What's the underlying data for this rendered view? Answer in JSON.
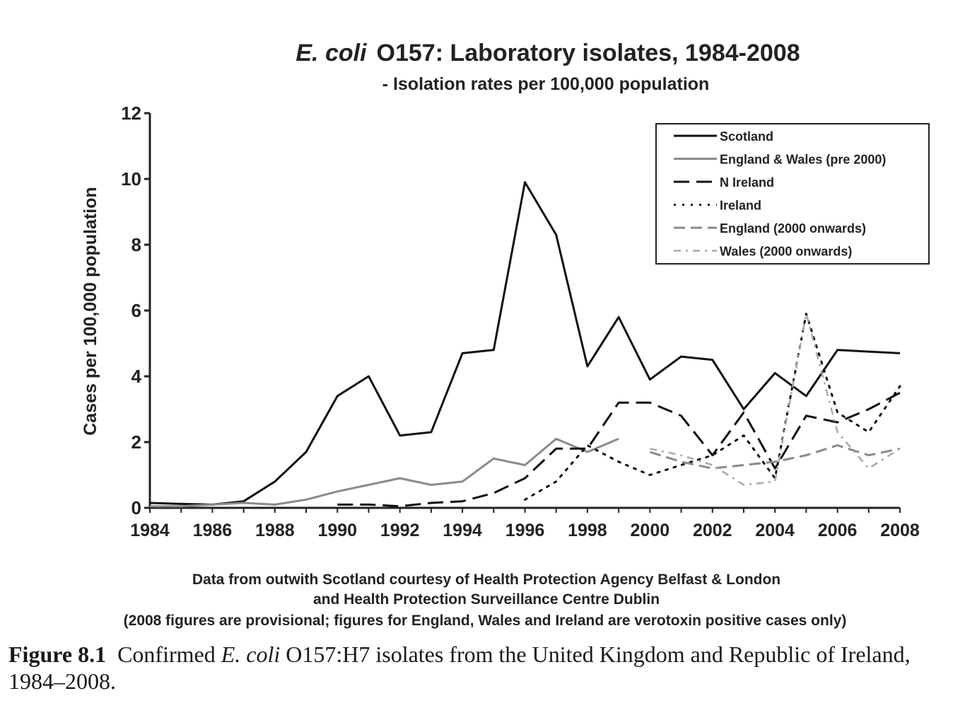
{
  "chart_data": {
    "type": "line",
    "title_italic": "E. coli",
    "title_rest": "O157: Laboratory isolates, 1984-2008",
    "subtitle": "- Isolation rates per 100,000 population",
    "ylabel": "Cases per 100,000 population",
    "xlabel": "",
    "xlim": [
      1984,
      2008
    ],
    "ylim": [
      0,
      12
    ],
    "x_ticks": [
      "1984",
      "1986",
      "1988",
      "1990",
      "1992",
      "1994",
      "1996",
      "1998",
      "2000",
      "2002",
      "2004",
      "2006",
      "2008"
    ],
    "y_ticks": [
      "0",
      "2",
      "4",
      "6",
      "8",
      "10",
      "12"
    ],
    "legend_position": "top-right",
    "series": [
      {
        "name": "Scotland",
        "style": "solid",
        "color": "#111111",
        "width": 3,
        "points": [
          [
            1984,
            0.15
          ],
          [
            1985,
            0.12
          ],
          [
            1986,
            0.1
          ],
          [
            1987,
            0.2
          ],
          [
            1988,
            0.8
          ],
          [
            1989,
            1.7
          ],
          [
            1990,
            3.4
          ],
          [
            1991,
            4.0
          ],
          [
            1992,
            2.2
          ],
          [
            1993,
            2.3
          ],
          [
            1994,
            4.7
          ],
          [
            1995,
            4.8
          ],
          [
            1996,
            9.9
          ],
          [
            1997,
            8.3
          ],
          [
            1998,
            4.3
          ],
          [
            1999,
            5.8
          ],
          [
            2000,
            3.9
          ],
          [
            2001,
            4.6
          ],
          [
            2002,
            4.5
          ],
          [
            2003,
            3.0
          ],
          [
            2004,
            4.1
          ],
          [
            2005,
            3.4
          ],
          [
            2006,
            4.8
          ],
          [
            2007,
            4.75
          ],
          [
            2008,
            4.7
          ]
        ]
      },
      {
        "name": "England & Wales (pre 2000)",
        "style": "solid",
        "color": "#8a8a8a",
        "width": 3,
        "points": [
          [
            1984,
            0.05
          ],
          [
            1985,
            0.05
          ],
          [
            1986,
            0.1
          ],
          [
            1987,
            0.15
          ],
          [
            1988,
            0.1
          ],
          [
            1989,
            0.25
          ],
          [
            1990,
            0.5
          ],
          [
            1991,
            0.7
          ],
          [
            1992,
            0.9
          ],
          [
            1993,
            0.7
          ],
          [
            1994,
            0.8
          ],
          [
            1995,
            1.5
          ],
          [
            1996,
            1.3
          ],
          [
            1997,
            2.1
          ],
          [
            1998,
            1.7
          ],
          [
            1999,
            2.1
          ]
        ]
      },
      {
        "name": "N Ireland",
        "style": "longdash",
        "color": "#111111",
        "width": 3,
        "points": [
          [
            1990,
            0.1
          ],
          [
            1991,
            0.1
          ],
          [
            1992,
            0.05
          ],
          [
            1993,
            0.15
          ],
          [
            1994,
            0.2
          ],
          [
            1995,
            0.45
          ],
          [
            1996,
            0.9
          ],
          [
            1997,
            1.8
          ],
          [
            1998,
            1.8
          ],
          [
            1999,
            3.2
          ],
          [
            2000,
            3.2
          ],
          [
            2001,
            2.8
          ],
          [
            2002,
            1.6
          ],
          [
            2003,
            2.9
          ],
          [
            2004,
            1.2
          ],
          [
            2005,
            2.8
          ],
          [
            2006,
            2.6
          ],
          [
            2007,
            3.0
          ],
          [
            2008,
            3.5
          ]
        ]
      },
      {
        "name": "Ireland",
        "style": "dotted",
        "color": "#111111",
        "width": 3,
        "points": [
          [
            1996,
            0.25
          ],
          [
            1997,
            0.8
          ],
          [
            1998,
            1.9
          ],
          [
            1999,
            1.4
          ],
          [
            2000,
            1.0
          ],
          [
            2001,
            1.3
          ],
          [
            2002,
            1.6
          ],
          [
            2003,
            2.2
          ],
          [
            2004,
            0.9
          ],
          [
            2005,
            5.9
          ],
          [
            2006,
            2.9
          ],
          [
            2007,
            2.3
          ],
          [
            2008,
            3.7
          ]
        ]
      },
      {
        "name": "England (2000 onwards)",
        "style": "dash",
        "color": "#8a8a8a",
        "width": 3,
        "points": [
          [
            2000,
            1.7
          ],
          [
            2001,
            1.4
          ],
          [
            2002,
            1.2
          ],
          [
            2003,
            1.3
          ],
          [
            2004,
            1.4
          ],
          [
            2005,
            1.6
          ],
          [
            2006,
            1.9
          ],
          [
            2007,
            1.6
          ],
          [
            2008,
            1.8
          ]
        ]
      },
      {
        "name": "Wales (2000 onwards)",
        "style": "dashdot",
        "color": "#a8a8a8",
        "width": 2.5,
        "points": [
          [
            2000,
            1.8
          ],
          [
            2001,
            1.6
          ],
          [
            2002,
            1.3
          ],
          [
            2003,
            0.7
          ],
          [
            2004,
            0.8
          ],
          [
            2005,
            5.9
          ],
          [
            2006,
            2.3
          ],
          [
            2007,
            1.2
          ],
          [
            2008,
            1.8
          ]
        ]
      }
    ],
    "notes": [
      "Data from outwith Scotland courtesy of Health Protection Agency Belfast & London",
      "and Health Protection Surveillance Centre Dublin",
      "(2008 figures are provisional; figures for England, Wales and Ireland are verotoxin positive cases only)"
    ]
  },
  "caption": {
    "label": "Figure 8.1",
    "text_before": "Confirmed",
    "italic": "E. coli",
    "text_after": "O157:H7 isolates from the United Kingdom and Republic of Ireland, 1984–2008."
  }
}
